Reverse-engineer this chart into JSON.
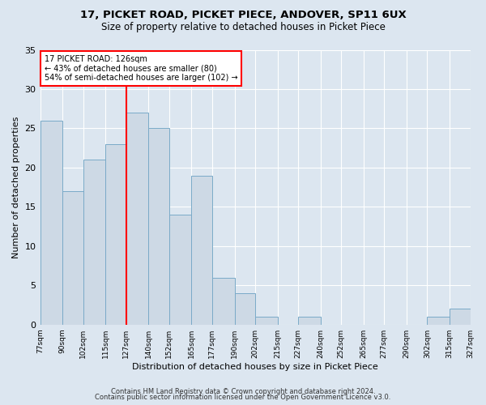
{
  "title": "17, PICKET ROAD, PICKET PIECE, ANDOVER, SP11 6UX",
  "subtitle": "Size of property relative to detached houses in Picket Piece",
  "xlabel": "Distribution of detached houses by size in Picket Piece",
  "ylabel": "Number of detached properties",
  "bar_color": "#cdd9e5",
  "bar_edge_color": "#7aaac8",
  "background_color": "#dce6f0",
  "red_line_x": 127,
  "annotation_line1": "17 PICKET ROAD: 126sqm",
  "annotation_line2": "← 43% of detached houses are smaller (80)",
  "annotation_line3": "54% of semi-detached houses are larger (102) →",
  "bins": [
    77,
    90,
    102,
    115,
    127,
    140,
    152,
    165,
    177,
    190,
    202,
    215,
    227,
    240,
    252,
    265,
    277,
    290,
    302,
    315,
    327
  ],
  "counts": [
    26,
    17,
    21,
    23,
    27,
    25,
    14,
    19,
    6,
    4,
    1,
    0,
    1,
    0,
    0,
    0,
    0,
    0,
    1,
    2,
    0
  ],
  "ylim": [
    0,
    35
  ],
  "yticks": [
    0,
    5,
    10,
    15,
    20,
    25,
    30,
    35
  ],
  "footer_line1": "Contains HM Land Registry data © Crown copyright and database right 2024.",
  "footer_line2": "Contains public sector information licensed under the Open Government Licence v3.0."
}
